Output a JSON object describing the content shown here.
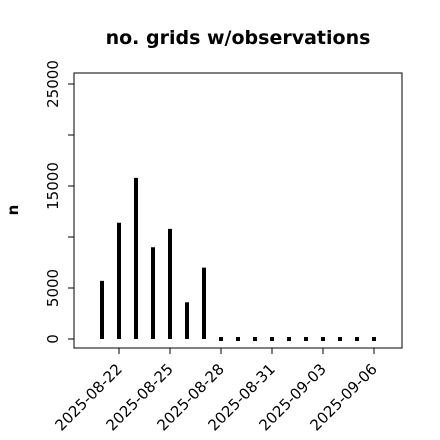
{
  "chart_data": {
    "type": "bar",
    "title": "no. grids w/observations",
    "xlabel": "",
    "ylabel": "n",
    "ylim": [
      0,
      26000
    ],
    "y_ticks": [
      0,
      5000,
      10000,
      15000,
      20000,
      25000
    ],
    "y_tick_labels": [
      "0",
      "5000",
      "",
      "15000",
      "",
      "25000"
    ],
    "x_tick_labels": [
      "2025-08-22",
      "2025-08-25",
      "2025-08-28",
      "2025-08-31",
      "2025-09-03",
      "2025-09-06"
    ],
    "highlighted_x_tick": "2025-08-28",
    "highlight_color": "#228b22",
    "bar_color": "#000000",
    "grid": false,
    "categories": [
      "2025-08-21",
      "2025-08-22",
      "2025-08-23",
      "2025-08-24",
      "2025-08-25",
      "2025-08-26",
      "2025-08-27",
      "2025-08-28",
      "2025-08-29",
      "2025-08-30",
      "2025-08-31",
      "2025-09-01",
      "2025-09-02",
      "2025-09-03",
      "2025-09-04",
      "2025-09-05",
      "2025-09-06"
    ],
    "values": [
      5700,
      11400,
      15800,
      9000,
      10800,
      3600,
      7000,
      0,
      0,
      0,
      0,
      0,
      0,
      0,
      0,
      0,
      0
    ]
  }
}
